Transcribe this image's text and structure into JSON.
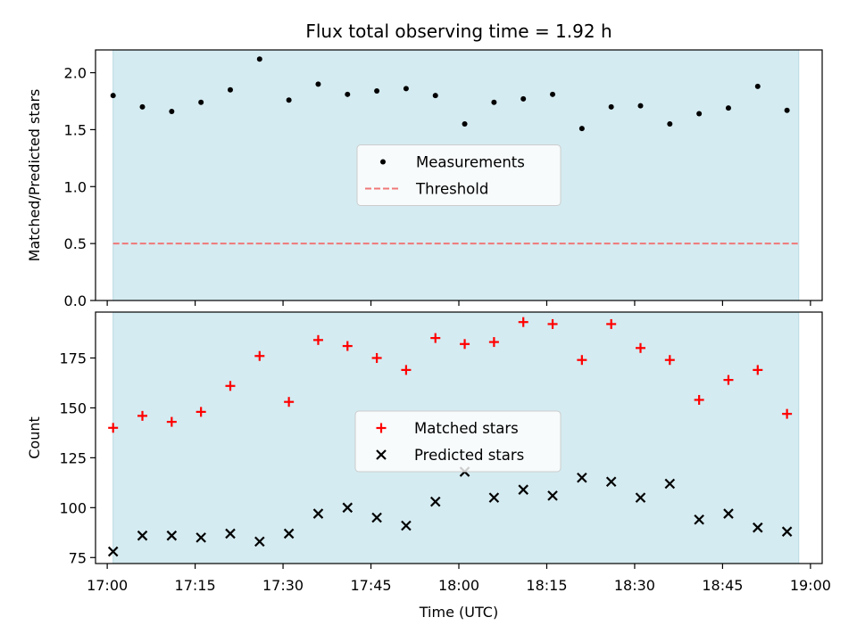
{
  "chart_data": {
    "title": "Flux total observing time = 1.92 h",
    "xlabel": "Time (UTC)",
    "x_ticks": [
      "17:00",
      "17:15",
      "17:30",
      "17:45",
      "18:00",
      "18:15",
      "18:30",
      "18:45",
      "19:00"
    ],
    "x_tick_minutes": [
      0,
      15,
      30,
      45,
      60,
      75,
      90,
      105,
      120
    ],
    "xlim_minutes": [
      -2,
      122
    ],
    "shaded_span_minutes": [
      1,
      118
    ],
    "shade_color": "#d4ebf1",
    "times": [
      "17:01",
      "17:06",
      "17:11",
      "17:16",
      "17:21",
      "17:26",
      "17:31",
      "17:36",
      "17:41",
      "17:46",
      "17:51",
      "17:56",
      "18:01",
      "18:06",
      "18:11",
      "18:16",
      "18:21",
      "18:26",
      "18:31",
      "18:36",
      "18:41",
      "18:46",
      "18:51",
      "18:56"
    ],
    "time_minutes": [
      1,
      6,
      11,
      16,
      21,
      26,
      31,
      36,
      41,
      46,
      51,
      56,
      61,
      66,
      71,
      76,
      81,
      86,
      91,
      96,
      101,
      106,
      111,
      116
    ],
    "panels": [
      {
        "type": "scatter",
        "ylabel": "Matched/Predicted stars",
        "ylim": [
          0,
          2.2
        ],
        "y_ticks": [
          0.0,
          0.5,
          1.0,
          1.5,
          2.0
        ],
        "y_tick_labels": [
          "0.0",
          "0.5",
          "1.0",
          "1.5",
          "2.0"
        ],
        "legend_position": "center",
        "series": [
          {
            "name": "Measurements",
            "marker": "dot",
            "color": "#000000",
            "values": [
              1.8,
              1.7,
              1.66,
              1.74,
              1.85,
              2.12,
              1.76,
              1.9,
              1.81,
              1.84,
              1.86,
              1.8,
              1.55,
              1.74,
              1.77,
              1.81,
              1.51,
              1.7,
              1.71,
              1.55,
              1.64,
              1.69,
              1.88,
              1.67
            ]
          }
        ],
        "threshold": {
          "name": "Threshold",
          "value": 0.5,
          "color": "#f07878",
          "line_style": "dashed"
        }
      },
      {
        "type": "scatter",
        "ylabel": "Count",
        "ylim": [
          72,
          198
        ],
        "y_ticks": [
          75,
          100,
          125,
          150,
          175
        ],
        "y_tick_labels": [
          "75",
          "100",
          "125",
          "150",
          "175"
        ],
        "legend_position": "center",
        "series": [
          {
            "name": "Matched stars",
            "marker": "plus",
            "color": "#ff0000",
            "values": [
              140,
              146,
              143,
              148,
              161,
              176,
              153,
              184,
              181,
              175,
              169,
              185,
              182,
              183,
              193,
              192,
              174,
              192,
              180,
              174,
              154,
              164,
              169,
              147
            ]
          },
          {
            "name": "Predicted stars",
            "marker": "x",
            "color": "#000000",
            "values": [
              78,
              86,
              86,
              85,
              87,
              83,
              87,
              97,
              100,
              95,
              91,
              103,
              118,
              105,
              109,
              106,
              115,
              113,
              105,
              112,
              94,
              97,
              90,
              88
            ]
          }
        ]
      }
    ]
  }
}
